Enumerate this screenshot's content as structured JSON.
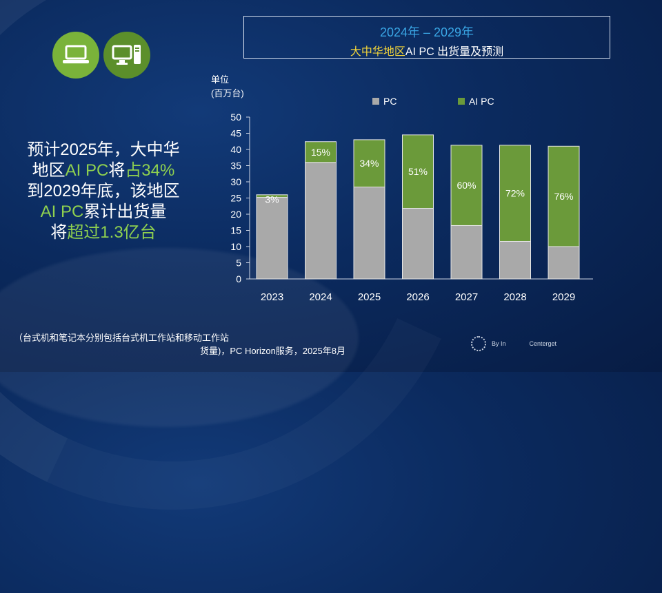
{
  "title": {
    "line1": "2024年 – 2029年",
    "line2_highlight": "大中华地区",
    "line2_rest": "AI PC 出货量及预测"
  },
  "left_text": {
    "l1": "预计2025年，大中华",
    "l2a": "地区",
    "l2b": "AI PC",
    "l2c": "将",
    "l2d": "占34%",
    "l3": "到2029年底，该地区",
    "l4a": "AI PC",
    "l4b": "累计出货量",
    "l5a": "将",
    "l5b": "超过1.3亿台"
  },
  "unit": {
    "l1": "单位",
    "l2": "(百万台)"
  },
  "footnote": {
    "line1": "（台式机和笔记本分别包括台式机工作站和移动工作站",
    "line2": "货量)，PC Horizon服务，2025年8月"
  },
  "logo": {
    "left": "By In",
    "right": "Centerget"
  },
  "colors": {
    "pc": "#a9a9a9",
    "ai_pc": "#6b9a3a",
    "title_blue": "#3aa7e6",
    "highlight_yellow": "#f2d43a",
    "green_text": "#8fd14f"
  },
  "icons": [
    "laptop-icon",
    "desktop-icon"
  ],
  "chart_data": {
    "type": "bar",
    "stacked": true,
    "categories": [
      "2023",
      "2024",
      "2025",
      "2026",
      "2027",
      "2028",
      "2029"
    ],
    "series": [
      {
        "name": "PC",
        "values": [
          25.2,
          36.0,
          28.4,
          21.8,
          16.5,
          11.6,
          10.0
        ]
      },
      {
        "name": "AI PC",
        "values": [
          0.8,
          6.4,
          14.6,
          22.7,
          24.8,
          29.7,
          31.0
        ]
      }
    ],
    "percent_labels": [
      "3%",
      "15%",
      "34%",
      "51%",
      "60%",
      "72%",
      "76%"
    ],
    "ylabel": "单位 (百万台)",
    "ylim": [
      0,
      50
    ],
    "yticks": [
      0,
      5,
      10,
      15,
      20,
      25,
      30,
      35,
      40,
      45,
      50
    ],
    "legend": "top",
    "grid": false
  }
}
